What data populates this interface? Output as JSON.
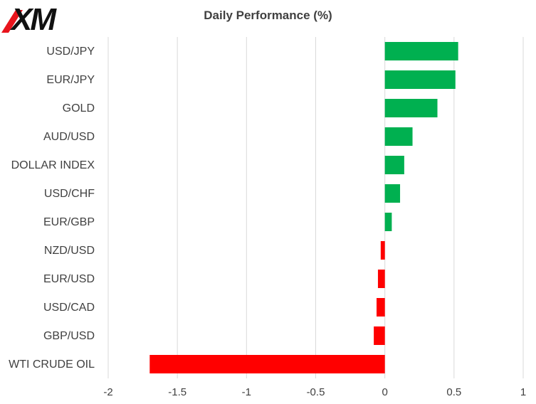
{
  "logo": {
    "text": "XM",
    "colors": {
      "main": "#111111",
      "accent": "#e8141c"
    }
  },
  "chart_data": {
    "type": "bar",
    "orientation": "horizontal",
    "title": "Daily Performance (%)",
    "xlabel": "",
    "ylabel": "",
    "categories": [
      "USD/JPY",
      "EUR/JPY",
      "GOLD",
      "AUD/USD",
      "DOLLAR INDEX",
      "USD/CHF",
      "EUR/GBP",
      "NZD/USD",
      "EUR/USD",
      "USD/CAD",
      "GBP/USD",
      "WTI CRUDE OIL"
    ],
    "values": [
      0.53,
      0.51,
      0.38,
      0.2,
      0.14,
      0.11,
      0.05,
      -0.03,
      -0.05,
      -0.06,
      -0.08,
      -1.7
    ],
    "xlim": [
      -2,
      1
    ],
    "ticks": [
      -2,
      -1.5,
      -1,
      -0.5,
      0,
      0.5,
      1
    ],
    "tick_labels": [
      "-2",
      "-1.5",
      "-1",
      "-0.5",
      "0",
      "0.5",
      "1"
    ],
    "grid": "vertical",
    "legend": "none",
    "colors": {
      "positive": "#00b050",
      "negative": "#ff0000",
      "grid": "#d9d9d9",
      "text": "#404040"
    }
  }
}
